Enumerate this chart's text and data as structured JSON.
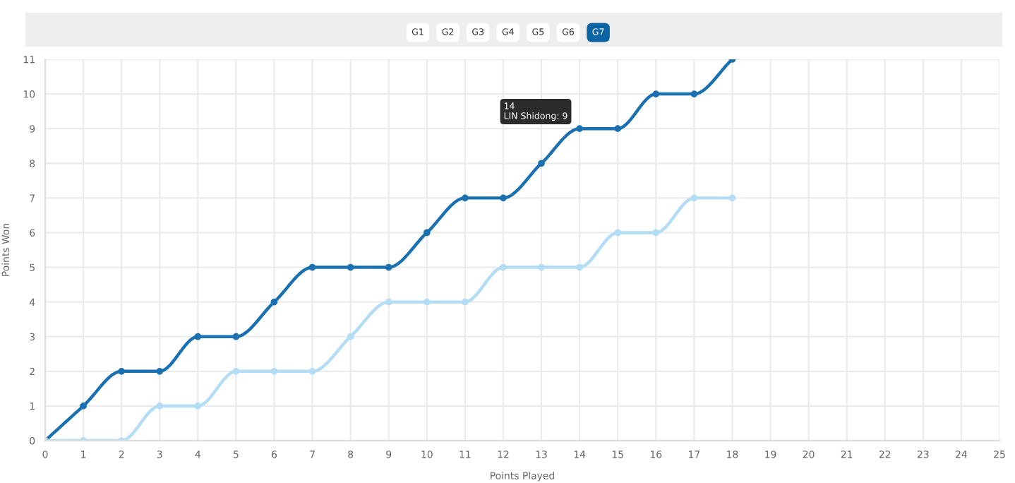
{
  "chart_data": {
    "type": "line",
    "xlabel": "Points Played",
    "ylabel": "Points Won",
    "x": [
      0,
      1,
      2,
      3,
      4,
      5,
      6,
      7,
      8,
      9,
      10,
      11,
      12,
      13,
      14,
      15,
      16,
      17,
      18
    ],
    "series": [
      {
        "color": "#1a70b0",
        "values": [
          0,
          1,
          2,
          2,
          3,
          3,
          4,
          5,
          5,
          5,
          6,
          7,
          7,
          8,
          9,
          9,
          10,
          10,
          11
        ]
      },
      {
        "color": "#b3dcf5",
        "values": [
          0,
          0,
          0,
          1,
          1,
          2,
          2,
          2,
          3,
          4,
          4,
          4,
          5,
          5,
          5,
          6,
          6,
          7,
          7
        ]
      }
    ],
    "xlim": [
      0,
      25
    ],
    "xticks": [
      0,
      1,
      2,
      3,
      4,
      5,
      6,
      7,
      8,
      9,
      10,
      11,
      12,
      13,
      14,
      15,
      16,
      17,
      18,
      19,
      20,
      21,
      22,
      23,
      24,
      25
    ],
    "ylim": [
      0,
      11
    ],
    "yticks": [
      0,
      1,
      2,
      3,
      4,
      5,
      6,
      7,
      8,
      9,
      10,
      11
    ],
    "grid": true,
    "marker": "circle",
    "line_style": "solid",
    "legend": false,
    "annotations": [
      "G1",
      "G2",
      "G3",
      "G4",
      "G5",
      "G6",
      "G7",
      {
        "text": "14\nLIN Shidong: 9",
        "x": 14,
        "y": 9
      }
    ]
  }
}
